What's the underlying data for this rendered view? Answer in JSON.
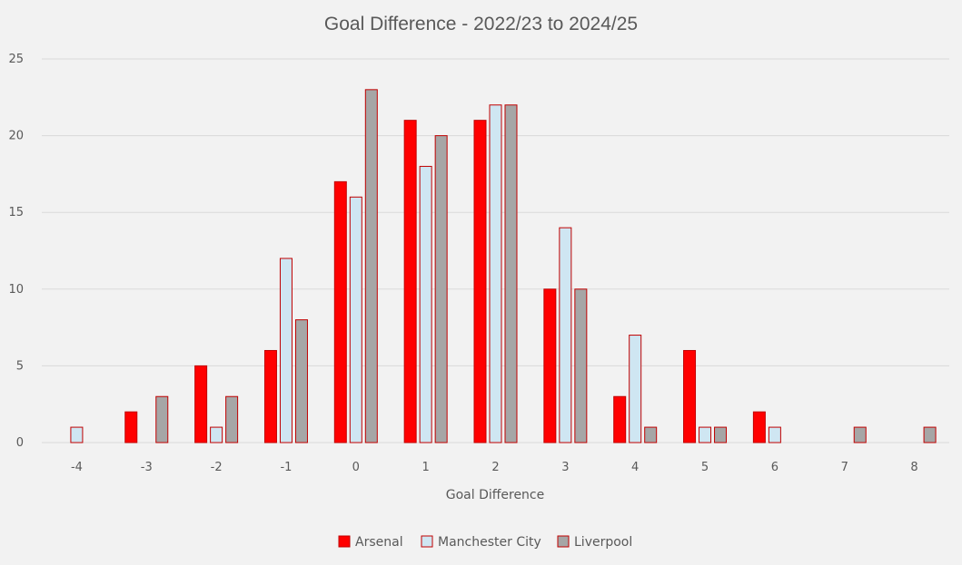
{
  "chart_data": {
    "type": "bar",
    "title": "Goal Difference - 2022/23 to 2024/25",
    "xlabel": "Goal Difference",
    "ylabel": "",
    "ylim": [
      0,
      25
    ],
    "yticks": [
      0,
      5,
      10,
      15,
      20,
      25
    ],
    "grid": true,
    "legend_position": "bottom",
    "categories": [
      "-4",
      "-3",
      "-2",
      "-1",
      "0",
      "1",
      "2",
      "3",
      "4",
      "5",
      "6",
      "7",
      "8"
    ],
    "series": [
      {
        "name": "Arsenal",
        "fill": "#ff0000",
        "stroke": "#c00000",
        "values": [
          0,
          2,
          5,
          6,
          17,
          21,
          21,
          10,
          3,
          6,
          2,
          0,
          0
        ]
      },
      {
        "name": "Manchester City",
        "fill": "#cfe6f2",
        "stroke": "#c00000",
        "values": [
          1,
          0,
          1,
          12,
          16,
          18,
          22,
          14,
          7,
          1,
          1,
          0,
          0
        ]
      },
      {
        "name": "Liverpool",
        "fill": "#a6a6a6",
        "stroke": "#c00000",
        "values": [
          0,
          3,
          3,
          8,
          23,
          20,
          22,
          10,
          1,
          1,
          0,
          1,
          1
        ]
      }
    ]
  }
}
